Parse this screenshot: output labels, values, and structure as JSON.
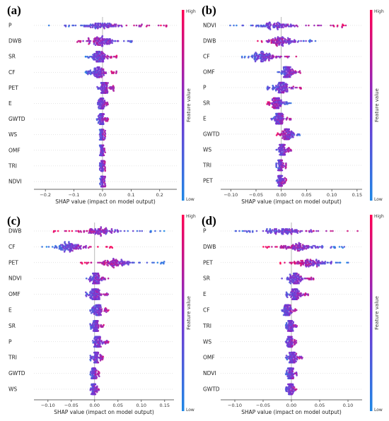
{
  "figure": {
    "colorbar": {
      "high": "High",
      "low": "Low",
      "label": "Feature value",
      "color_high": "#ff0052",
      "color_mid": "#7b2fd1",
      "color_low": "#1e88e5"
    }
  },
  "chart_data": [
    {
      "type": "scatter",
      "subtype": "shap-beeswarm",
      "panel_label": "(a)",
      "xlabel": "SHAP value (impact on model output)",
      "xlim": [
        -0.24,
        0.26
      ],
      "xticks": [
        -0.2,
        -0.1,
        0.0,
        0.1,
        0.2
      ],
      "tick_labels": [
        "−0.2",
        "−0.1",
        "0.0",
        "0.1",
        "0.2"
      ],
      "features": [
        {
          "name": "P",
          "min": -0.19,
          "max": 0.24,
          "width": 0.24,
          "skew": 0.35
        },
        {
          "name": "DWB",
          "min": -0.09,
          "max": 0.11,
          "width": 0.14,
          "skew": -0.1
        },
        {
          "name": "SR",
          "min": -0.06,
          "max": 0.05,
          "width": 0.06,
          "skew": 0.2
        },
        {
          "name": "CF",
          "min": -0.06,
          "max": 0.05,
          "width": 0.06,
          "skew": 0.25
        },
        {
          "name": "PET",
          "min": -0.02,
          "max": 0.04,
          "width": 0.03,
          "skew": 0.0
        },
        {
          "name": "E",
          "min": -0.02,
          "max": 0.02,
          "width": 0.015,
          "skew": 0.0
        },
        {
          "name": "GWTD",
          "min": -0.02,
          "max": 0.02,
          "width": 0.015,
          "skew": 0.0
        },
        {
          "name": "WS",
          "min": -0.01,
          "max": 0.01,
          "width": 0.01,
          "skew": 0.0
        },
        {
          "name": "OMF",
          "min": -0.01,
          "max": 0.01,
          "width": 0.01,
          "skew": 0.0
        },
        {
          "name": "TRI",
          "min": -0.01,
          "max": 0.01,
          "width": 0.008,
          "skew": 0.0
        },
        {
          "name": "NDVI",
          "min": -0.01,
          "max": 0.01,
          "width": 0.007,
          "skew": 0.0
        }
      ]
    },
    {
      "type": "scatter",
      "subtype": "shap-beeswarm",
      "panel_label": "(b)",
      "xlabel": "SHAP value (impact on model output)",
      "xlim": [
        -0.12,
        0.16
      ],
      "xticks": [
        -0.1,
        -0.05,
        0.0,
        0.05,
        0.1,
        0.15
      ],
      "tick_labels": [
        "−0.10",
        "−0.05",
        "0.00",
        "0.05",
        "0.10",
        "0.15"
      ],
      "features": [
        {
          "name": "NDVI",
          "min": -0.11,
          "max": 0.13,
          "width": 0.12,
          "skew": 0.4
        },
        {
          "name": "DWB",
          "min": -0.05,
          "max": 0.07,
          "width": 0.06,
          "skew": -0.2
        },
        {
          "name": "CF",
          "min": -0.08,
          "max": 0.03,
          "width": 0.04,
          "skew": 0.3
        },
        {
          "name": "OMF",
          "min": -0.01,
          "max": 0.04,
          "width": 0.03,
          "skew": 0.1
        },
        {
          "name": "P",
          "min": -0.03,
          "max": 0.04,
          "width": 0.04,
          "skew": 0.1
        },
        {
          "name": "SR",
          "min": -0.03,
          "max": 0.02,
          "width": 0.03,
          "skew": -0.2
        },
        {
          "name": "E",
          "min": -0.02,
          "max": 0.02,
          "width": 0.02,
          "skew": 0.0
        },
        {
          "name": "GWTD",
          "min": -0.01,
          "max": 0.04,
          "width": 0.02,
          "skew": -0.2
        },
        {
          "name": "WS",
          "min": -0.01,
          "max": 0.02,
          "width": 0.02,
          "skew": 0.0
        },
        {
          "name": "TRI",
          "min": -0.01,
          "max": 0.01,
          "width": 0.01,
          "skew": 0.0
        },
        {
          "name": "PET",
          "min": -0.01,
          "max": 0.01,
          "width": 0.01,
          "skew": 0.0
        }
      ]
    },
    {
      "type": "scatter",
      "subtype": "shap-beeswarm",
      "panel_label": "(c)",
      "xlabel": "SHAP value (impact on model output)",
      "xlim": [
        -0.13,
        0.17
      ],
      "xticks": [
        -0.1,
        -0.05,
        0.0,
        0.05,
        0.1,
        0.15
      ],
      "tick_labels": [
        "−0.10",
        "−0.05",
        "0.00",
        "0.05",
        "0.10",
        "0.15"
      ],
      "features": [
        {
          "name": "DWB",
          "min": -0.09,
          "max": 0.15,
          "width": 0.12,
          "skew": -0.6
        },
        {
          "name": "CF",
          "min": -0.12,
          "max": 0.04,
          "width": 0.08,
          "skew": 0.6
        },
        {
          "name": "PET",
          "min": -0.03,
          "max": 0.15,
          "width": 0.09,
          "skew": -0.6
        },
        {
          "name": "NDVI",
          "min": -0.02,
          "max": 0.03,
          "width": 0.025,
          "skew": 0.0
        },
        {
          "name": "OMF",
          "min": -0.02,
          "max": 0.03,
          "width": 0.025,
          "skew": 0.0
        },
        {
          "name": "E",
          "min": -0.01,
          "max": 0.03,
          "width": 0.02,
          "skew": 0.0
        },
        {
          "name": "SR",
          "min": -0.01,
          "max": 0.02,
          "width": 0.02,
          "skew": 0.0
        },
        {
          "name": "P",
          "min": -0.01,
          "max": 0.03,
          "width": 0.015,
          "skew": 0.0
        },
        {
          "name": "TRI",
          "min": -0.01,
          "max": 0.02,
          "width": 0.012,
          "skew": 0.0
        },
        {
          "name": "GWTD",
          "min": -0.01,
          "max": 0.01,
          "width": 0.01,
          "skew": 0.0
        },
        {
          "name": "WS",
          "min": -0.01,
          "max": 0.01,
          "width": 0.008,
          "skew": 0.0
        }
      ]
    },
    {
      "type": "scatter",
      "subtype": "shap-beeswarm",
      "panel_label": "(d)",
      "xlabel": "SHAP value (impact on model output)",
      "xlim": [
        -0.125,
        0.125
      ],
      "xticks": [
        -0.1,
        -0.05,
        0.0,
        0.05,
        0.1
      ],
      "tick_labels": [
        "−0.10",
        "−0.05",
        "0.00",
        "0.05",
        "0.10"
      ],
      "features": [
        {
          "name": "P",
          "min": -0.11,
          "max": 0.12,
          "width": 0.12,
          "skew": 0.4
        },
        {
          "name": "DWB",
          "min": -0.05,
          "max": 0.1,
          "width": 0.07,
          "skew": -0.4
        },
        {
          "name": "PET",
          "min": -0.02,
          "max": 0.11,
          "width": 0.06,
          "skew": -0.6
        },
        {
          "name": "SR",
          "min": -0.02,
          "max": 0.04,
          "width": 0.03,
          "skew": 0.0
        },
        {
          "name": "E",
          "min": -0.01,
          "max": 0.03,
          "width": 0.025,
          "skew": 0.0
        },
        {
          "name": "CF",
          "min": -0.02,
          "max": 0.01,
          "width": 0.02,
          "skew": 0.0
        },
        {
          "name": "TRI",
          "min": -0.01,
          "max": 0.01,
          "width": 0.012,
          "skew": 0.0
        },
        {
          "name": "WS",
          "min": -0.01,
          "max": 0.01,
          "width": 0.012,
          "skew": 0.0
        },
        {
          "name": "OMF",
          "min": -0.01,
          "max": 0.02,
          "width": 0.01,
          "skew": 0.0
        },
        {
          "name": "NDVI",
          "min": -0.01,
          "max": 0.01,
          "width": 0.008,
          "skew": 0.0
        },
        {
          "name": "GWTD",
          "min": -0.01,
          "max": 0.01,
          "width": 0.008,
          "skew": 0.0
        }
      ]
    }
  ]
}
